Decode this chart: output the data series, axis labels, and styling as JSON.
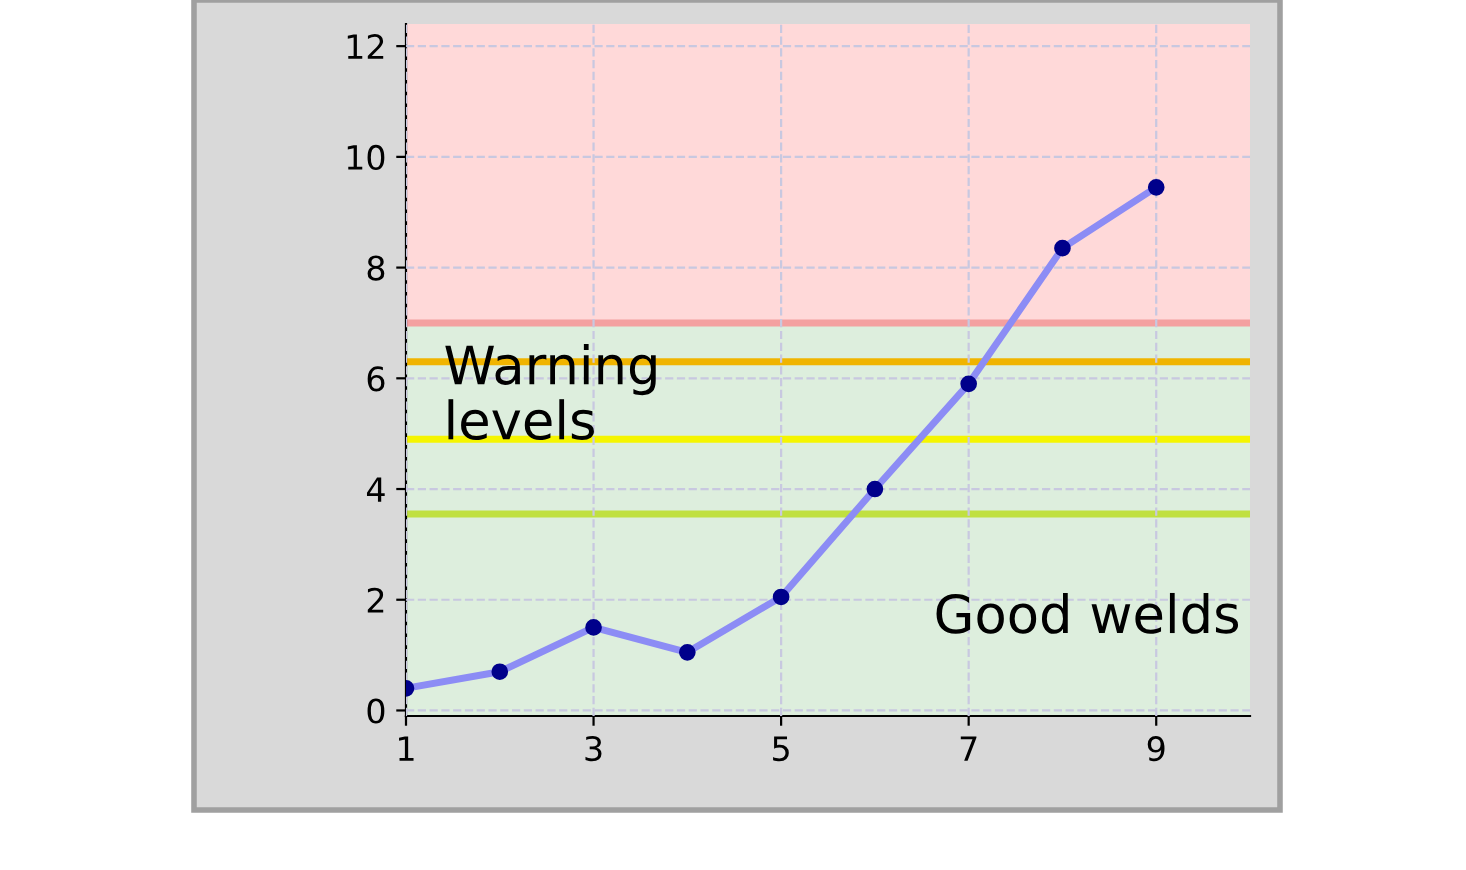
{
  "chart_data": {
    "type": "line",
    "x": [
      1,
      2,
      3,
      4,
      5,
      6,
      7,
      8,
      9
    ],
    "series": [
      {
        "color": "#8c8cf5",
        "values": [
          0.4,
          0.7,
          1.5,
          1.05,
          2.05,
          4.0,
          5.9,
          8.35,
          9.45
        ]
      }
    ],
    "marker": "circle",
    "xlim": [
      1,
      10
    ],
    "ylim": [
      -0.1,
      12.4
    ],
    "xticks": [
      1,
      3,
      5,
      7,
      9
    ],
    "yticks": [
      0,
      2,
      4,
      6,
      8,
      10,
      12
    ],
    "grid": true,
    "bands": [
      {
        "axis": "y",
        "from": 7,
        "to": 12.4,
        "color": "#ffd9d9"
      },
      {
        "axis": "y",
        "from": -0.1,
        "to": 7,
        "color": "#ddeedd"
      }
    ],
    "ref_lines": [
      {
        "axis": "y",
        "value": 7,
        "color": "#f4a0a0"
      },
      {
        "axis": "y",
        "value": 6.3,
        "color": "#f0b400"
      },
      {
        "axis": "y",
        "value": 4.9,
        "color": "#f5f500"
      },
      {
        "axis": "y",
        "value": 3.55,
        "color": "#c0e040"
      }
    ],
    "annotations": [
      {
        "text": "Warning\nlevels",
        "x": 1.4,
        "y": 4.7
      },
      {
        "text": "Good welds",
        "x": 9.9,
        "y": 1.2
      }
    ]
  }
}
